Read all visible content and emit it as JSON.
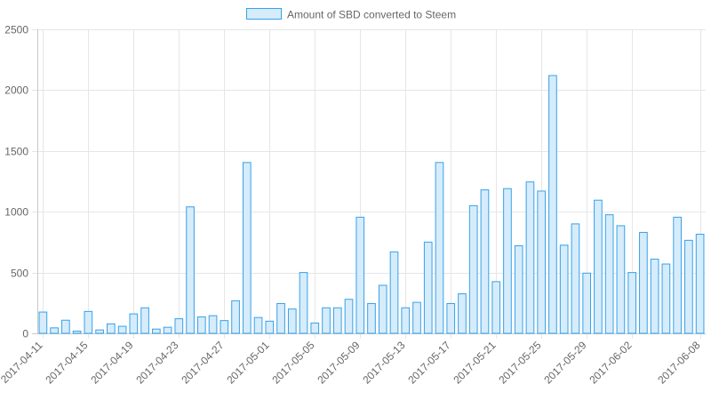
{
  "chart_data": {
    "type": "bar",
    "series": [
      {
        "name": "Amount of SBD converted to Steem",
        "values": [
          175,
          45,
          108,
          18,
          180,
          28,
          78,
          58,
          160,
          210,
          35,
          50,
          120,
          1040,
          135,
          145,
          105,
          268,
          1405,
          130,
          100,
          245,
          200,
          500,
          85,
          210,
          210,
          280,
          955,
          245,
          395,
          670,
          210,
          255,
          750,
          1405,
          245,
          325,
          1050,
          1180,
          425,
          1190,
          720,
          1245,
          1170,
          2120,
          725,
          900,
          495,
          1095,
          975,
          885,
          500,
          830,
          610,
          570,
          955,
          765,
          815
        ]
      }
    ],
    "categories": [
      "2017-04-11",
      "2017-04-12",
      "2017-04-13",
      "2017-04-14",
      "2017-04-15",
      "2017-04-16",
      "2017-04-17",
      "2017-04-18",
      "2017-04-19",
      "2017-04-20",
      "2017-04-21",
      "2017-04-22",
      "2017-04-23",
      "2017-04-24",
      "2017-04-25",
      "2017-04-26",
      "2017-04-27",
      "2017-04-28",
      "2017-04-29",
      "2017-04-30",
      "2017-05-01",
      "2017-05-02",
      "2017-05-03",
      "2017-05-04",
      "2017-05-05",
      "2017-05-06",
      "2017-05-07",
      "2017-05-08",
      "2017-05-09",
      "2017-05-10",
      "2017-05-11",
      "2017-05-12",
      "2017-05-13",
      "2017-05-14",
      "2017-05-15",
      "2017-05-16",
      "2017-05-17",
      "2017-05-18",
      "2017-05-19",
      "2017-05-20",
      "2017-05-21",
      "2017-05-22",
      "2017-05-23",
      "2017-05-24",
      "2017-05-25",
      "2017-05-26",
      "2017-05-27",
      "2017-05-28",
      "2017-05-29",
      "2017-05-30",
      "2017-05-31",
      "2017-06-01",
      "2017-06-02",
      "2017-06-03",
      "2017-06-04",
      "2017-06-05",
      "2017-06-06",
      "2017-06-07",
      "2017-06-08"
    ],
    "x_tick_labels": [
      "2017-04-11",
      "2017-04-15",
      "2017-04-19",
      "2017-04-23",
      "2017-04-27",
      "2017-05-01",
      "2017-05-05",
      "2017-05-09",
      "2017-05-13",
      "2017-05-17",
      "2017-05-21",
      "2017-05-25",
      "2017-05-29",
      "2017-06-02",
      "2017-06-08"
    ],
    "y_ticks": [
      0,
      500,
      1000,
      1500,
      2000,
      2500
    ],
    "ylim": [
      0,
      2500
    ],
    "grid": true,
    "legend": "top-center",
    "colors": {
      "bar_fill": "#d6ecfa",
      "bar_stroke": "#36a2eb",
      "grid": "#e6e6e6",
      "axis": "#c8c8c8",
      "text": "#666666"
    }
  }
}
